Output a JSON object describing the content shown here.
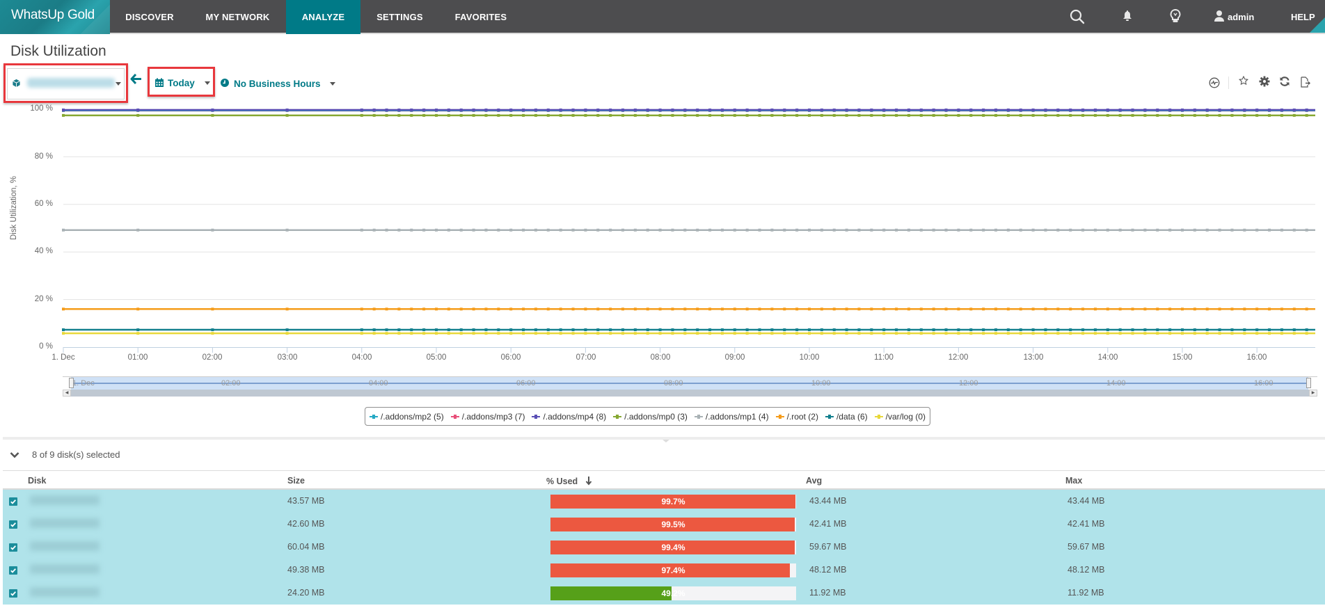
{
  "app": {
    "brand": "WhatsUp Gold",
    "nav": [
      {
        "label": "DISCOVER",
        "active": false
      },
      {
        "label": "MY NETWORK",
        "active": false
      },
      {
        "label": "ANALYZE",
        "active": true
      },
      {
        "label": "SETTINGS",
        "active": false
      },
      {
        "label": "FAVORITES",
        "active": false
      }
    ],
    "right_icons": [
      "search-icon",
      "bell-icon",
      "lightbulb-icon"
    ],
    "user": "admin",
    "help": "HELP",
    "colors": {
      "nav_bg": "#4d4d4f",
      "accent": "#007a87",
      "highlight_box": "#e8383d"
    }
  },
  "page": {
    "title": "Disk Utilization",
    "device_selector": {
      "value": "(device name blurred)",
      "icon": "cube-icon"
    },
    "back_icon": "arrow-left-icon",
    "time_range": {
      "label": "Today",
      "icon": "calendar-icon"
    },
    "business_hours": {
      "label": "No Business Hours",
      "icon": "clock-icon"
    },
    "tools": [
      "pulse-icon",
      "star-icon",
      "gear-icon",
      "refresh-icon",
      "export-icon"
    ]
  },
  "chart_data": {
    "type": "line",
    "title": "",
    "xlabel": "",
    "ylabel": "Disk Utilization, %",
    "ylim": [
      0,
      100
    ],
    "yticks": [
      "0 %",
      "20 %",
      "40 %",
      "60 %",
      "80 %",
      "100 %"
    ],
    "x": [
      "1. Dec",
      "01:00",
      "02:00",
      "03:00",
      "04:00",
      "05:00",
      "06:00",
      "07:00",
      "08:00",
      "09:00",
      "10:00",
      "11:00",
      "12:00",
      "13:00",
      "14:00",
      "15:00",
      "16:00"
    ],
    "grid": true,
    "legend_position": "bottom",
    "series": [
      {
        "name": "/.addons/mp2 (5)",
        "color": "#26a9c4",
        "values": [
          99.5,
          99.5,
          99.5,
          99.5,
          99.5,
          99.5,
          99.5,
          99.5,
          99.5,
          99.5,
          99.5,
          99.5,
          99.5,
          99.5,
          99.5,
          99.5,
          99.5
        ]
      },
      {
        "name": "/.addons/mp3 (7)",
        "color": "#e8507a",
        "values": [
          99.4,
          99.4,
          99.4,
          99.4,
          99.4,
          99.4,
          99.4,
          99.4,
          99.4,
          99.4,
          99.4,
          99.4,
          99.4,
          99.4,
          99.4,
          99.4,
          99.4
        ]
      },
      {
        "name": "/.addons/mp4 (8)",
        "color": "#5a4fb5",
        "values": [
          99.7,
          99.7,
          99.7,
          99.7,
          99.7,
          99.7,
          99.7,
          99.7,
          99.7,
          99.7,
          99.7,
          99.7,
          99.7,
          99.7,
          99.7,
          99.7,
          99.7
        ]
      },
      {
        "name": "/.addons/mp0 (3)",
        "color": "#86a832",
        "values": [
          97.4,
          97.4,
          97.4,
          97.4,
          97.4,
          97.4,
          97.4,
          97.4,
          97.4,
          97.4,
          97.4,
          97.4,
          97.4,
          97.4,
          97.4,
          97.4,
          97.4
        ]
      },
      {
        "name": "/.addons/mp1 (4)",
        "color": "#a9b2b5",
        "values": [
          49.2,
          49.2,
          49.2,
          49.2,
          49.2,
          49.2,
          49.2,
          49.2,
          49.2,
          49.2,
          49.2,
          49.2,
          49.2,
          49.2,
          49.2,
          49.2,
          49.2
        ]
      },
      {
        "name": "/.root (2)",
        "color": "#f59c1a",
        "values": [
          16,
          16,
          16,
          16,
          16,
          16,
          16,
          16,
          16,
          16,
          16,
          16,
          16,
          16,
          16,
          16,
          16
        ]
      },
      {
        "name": "/data (6)",
        "color": "#13808e",
        "values": [
          7.3,
          7.3,
          7.3,
          7.3,
          7.3,
          7.3,
          7.3,
          7.3,
          7.3,
          7.3,
          7.3,
          7.3,
          7.3,
          7.3,
          7.3,
          7.3,
          7.3
        ]
      },
      {
        "name": "/var/log (0)",
        "color": "#e8d83a",
        "values": [
          5.8,
          5.8,
          5.8,
          5.8,
          5.8,
          5.8,
          5.8,
          5.8,
          5.8,
          5.8,
          5.8,
          5.8,
          5.8,
          5.8,
          5.8,
          5.8,
          5.8
        ]
      }
    ],
    "navigator_labels": [
      "1. Dec",
      "02:00",
      "04:00",
      "06:00",
      "08:00",
      "10:00",
      "12:00",
      "14:00",
      "16:00"
    ]
  },
  "table": {
    "summary": "8 of 9 disk(s) selected",
    "columns": {
      "disk": "Disk",
      "size": "Size",
      "used": "% Used",
      "avg": "Avg",
      "max": "Max"
    },
    "sort_icon": "arrow-down-icon",
    "rows": [
      {
        "checked": true,
        "disk": "(blurred)",
        "size": "43.57 MB",
        "used": "99.7%",
        "used_pct": 99.7,
        "bar_color": "#ec5840",
        "avg": "43.44 MB",
        "max": "43.44 MB"
      },
      {
        "checked": true,
        "disk": "(blurred)",
        "size": "42.60 MB",
        "used": "99.5%",
        "used_pct": 99.5,
        "bar_color": "#ec5840",
        "avg": "42.41 MB",
        "max": "42.41 MB"
      },
      {
        "checked": true,
        "disk": "(blurred)",
        "size": "60.04 MB",
        "used": "99.4%",
        "used_pct": 99.4,
        "bar_color": "#ec5840",
        "avg": "59.67 MB",
        "max": "59.67 MB"
      },
      {
        "checked": true,
        "disk": "(blurred)",
        "size": "49.38 MB",
        "used": "97.4%",
        "used_pct": 97.4,
        "bar_color": "#ec5840",
        "avg": "48.12 MB",
        "max": "48.12 MB"
      },
      {
        "checked": true,
        "disk": "(blurred)",
        "size": "24.20 MB",
        "used": "49.2%",
        "used_pct": 49.2,
        "bar_color": "#56a019",
        "avg": "11.92 MB",
        "max": "11.92 MB"
      }
    ]
  }
}
